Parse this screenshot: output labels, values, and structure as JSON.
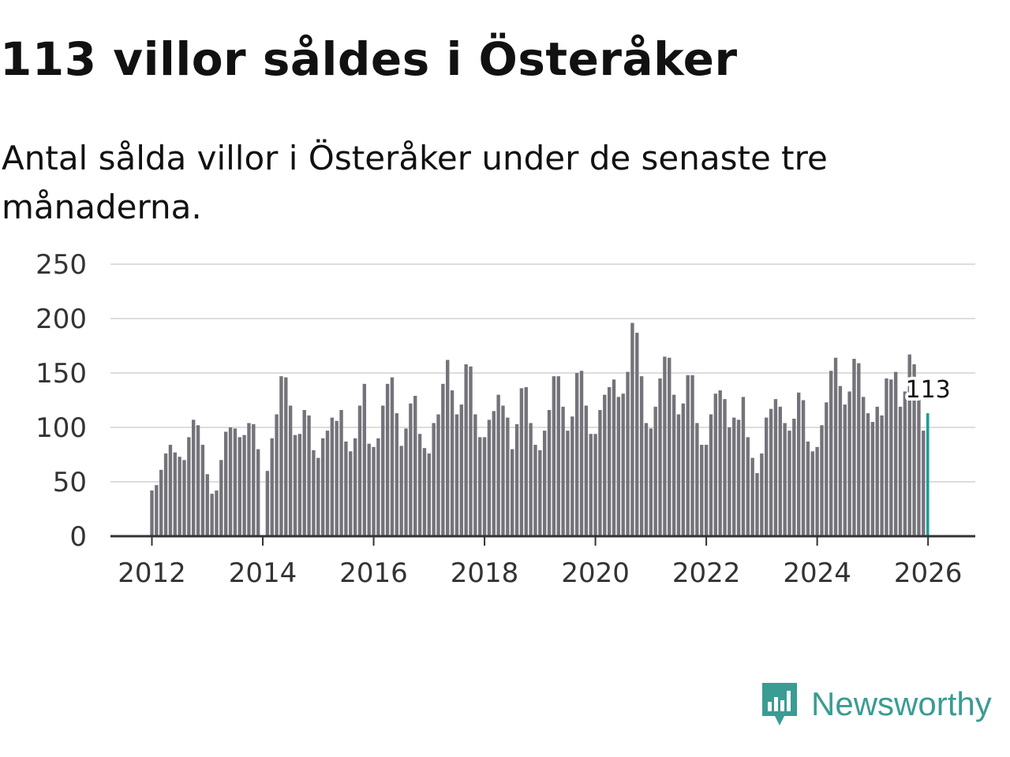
{
  "header": {
    "title": "113 villor såldes i Österåker",
    "subtitle": "Antal sålda villor i Österåker under de senaste tre månaderna."
  },
  "brand": {
    "name": "Newsworthy",
    "color": "#3a9c92"
  },
  "colors": {
    "bar": "#74737a",
    "highlight": "#1a9e94",
    "grid": "#dddddd",
    "axis": "#333333"
  },
  "chart_data": {
    "type": "bar",
    "title": "113 villor såldes i Österåker",
    "xlabel": "",
    "ylabel": "",
    "ylim": [
      0,
      250
    ],
    "yticks": [
      0,
      50,
      100,
      150,
      200,
      250
    ],
    "xticks": [
      {
        "label": "2012",
        "index": 0
      },
      {
        "label": "2014",
        "index": 24
      },
      {
        "label": "2016",
        "index": 48
      },
      {
        "label": "2018",
        "index": 72
      },
      {
        "label": "2020",
        "index": 96
      },
      {
        "label": "2022",
        "index": 120
      },
      {
        "label": "2024",
        "index": 144
      },
      {
        "label": "2026",
        "index": 168
      }
    ],
    "grid": true,
    "highlight_label": "113",
    "values": [
      42,
      47,
      61,
      76,
      84,
      77,
      73,
      70,
      91,
      107,
      102,
      84,
      57,
      39,
      42,
      70,
      96,
      100,
      99,
      91,
      93,
      104,
      103,
      80,
      0,
      60,
      90,
      112,
      147,
      146,
      120,
      93,
      94,
      116,
      111,
      79,
      72,
      90,
      97,
      109,
      106,
      116,
      87,
      78,
      90,
      120,
      140,
      85,
      82,
      90,
      120,
      140,
      146,
      113,
      83,
      99,
      122,
      129,
      94,
      81,
      76,
      104,
      112,
      140,
      162,
      134,
      112,
      121,
      158,
      156,
      112,
      91,
      91,
      107,
      115,
      130,
      120,
      109,
      80,
      103,
      136,
      137,
      104,
      84,
      79,
      97,
      116,
      147,
      147,
      119,
      97,
      110,
      150,
      152,
      120,
      94,
      94,
      116,
      130,
      137,
      144,
      128,
      131,
      151,
      196,
      187,
      147,
      104,
      99,
      119,
      145,
      165,
      164,
      130,
      112,
      122,
      148,
      148,
      104,
      84,
      84,
      112,
      131,
      134,
      126,
      100,
      109,
      107,
      128,
      91,
      72,
      58,
      76,
      109,
      117,
      126,
      119,
      104,
      97,
      108,
      132,
      125,
      87,
      78,
      82,
      102,
      123,
      152,
      164,
      138,
      121,
      133,
      163,
      159,
      128,
      113,
      105,
      119,
      111,
      145,
      144,
      151,
      119,
      133,
      167,
      158,
      127,
      97,
      113
    ]
  }
}
